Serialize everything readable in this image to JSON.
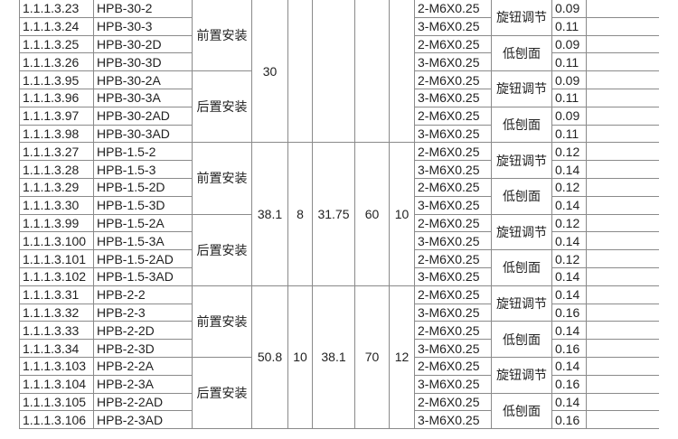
{
  "groups": [
    {
      "dims": [
        "30",
        "",
        "",
        "",
        ""
      ],
      "rows": [
        {
          "code": "1.1.1.3.23",
          "model": "HPB-30-2",
          "thread": "2-M6X0.25",
          "weight": "0.09"
        },
        {
          "code": "1.1.1.3.24",
          "model": "HPB-30-3",
          "thread": "3-M6X0.25",
          "weight": "0.11"
        },
        {
          "code": "1.1.1.3.25",
          "model": "HPB-30-2D",
          "thread": "2-M6X0.25",
          "weight": "0.09"
        },
        {
          "code": "1.1.1.3.26",
          "model": "HPB-30-3D",
          "thread": "3-M6X0.25",
          "weight": "0.11"
        },
        {
          "code": "1.1.1.3.95",
          "model": "HPB-30-2A",
          "thread": "2-M6X0.25",
          "weight": "0.09"
        },
        {
          "code": "1.1.1.3.96",
          "model": "HPB-30-3A",
          "thread": "3-M6X0.25",
          "weight": "0.11"
        },
        {
          "code": "1.1.1.3.97",
          "model": "HPB-30-2AD",
          "thread": "2-M6X0.25",
          "weight": "0.09"
        },
        {
          "code": "1.1.1.3.98",
          "model": "HPB-30-3AD",
          "thread": "3-M6X0.25",
          "weight": "0.11"
        }
      ]
    },
    {
      "dims": [
        "38.1",
        "8",
        "31.75",
        "60",
        "10"
      ],
      "rows": [
        {
          "code": "1.1.1.3.27",
          "model": "HPB-1.5-2",
          "thread": "2-M6X0.25",
          "weight": "0.12"
        },
        {
          "code": "1.1.1.3.28",
          "model": "HPB-1.5-3",
          "thread": "3-M6X0.25",
          "weight": "0.14"
        },
        {
          "code": "1.1.1.3.29",
          "model": "HPB-1.5-2D",
          "thread": "2-M6X0.25",
          "weight": "0.12"
        },
        {
          "code": "1.1.1.3.30",
          "model": "HPB-1.5-3D",
          "thread": "3-M6X0.25",
          "weight": "0.14"
        },
        {
          "code": "1.1.1.3.99",
          "model": "HPB-1.5-2A",
          "thread": "2-M6X0.25",
          "weight": "0.12"
        },
        {
          "code": "1.1.1.3.100",
          "model": "HPB-1.5-3A",
          "thread": "3-M6X0.25",
          "weight": "0.14"
        },
        {
          "code": "1.1.1.3.101",
          "model": "HPB-1.5-2AD",
          "thread": "2-M6X0.25",
          "weight": "0.12"
        },
        {
          "code": "1.1.1.3.102",
          "model": "HPB-1.5-3AD",
          "thread": "3-M6X0.25",
          "weight": "0.14"
        }
      ]
    },
    {
      "dims": [
        "50.8",
        "10",
        "38.1",
        "70",
        "12"
      ],
      "rows": [
        {
          "code": "1.1.1.3.31",
          "model": "HPB-2-2",
          "thread": "2-M6X0.25",
          "weight": "0.14"
        },
        {
          "code": "1.1.1.3.32",
          "model": "HPB-2-3",
          "thread": "3-M6X0.25",
          "weight": "0.16"
        },
        {
          "code": "1.1.1.3.33",
          "model": "HPB-2-2D",
          "thread": "2-M6X0.25",
          "weight": "0.14"
        },
        {
          "code": "1.1.1.3.34",
          "model": "HPB-2-3D",
          "thread": "3-M6X0.25",
          "weight": "0.16"
        },
        {
          "code": "1.1.1.3.103",
          "model": "HPB-2-2A",
          "thread": "2-M6X0.25",
          "weight": "0.14"
        },
        {
          "code": "1.1.1.3.104",
          "model": "HPB-2-3A",
          "thread": "3-M6X0.25",
          "weight": "0.16"
        },
        {
          "code": "1.1.1.3.105",
          "model": "HPB-2-2AD",
          "thread": "2-M6X0.25",
          "weight": "0.14"
        },
        {
          "code": "1.1.1.3.106",
          "model": "HPB-2-3AD",
          "thread": "3-M6X0.25",
          "weight": "0.16"
        }
      ]
    }
  ],
  "mounts": [
    "前置安装",
    "后置安装"
  ],
  "adjust_types": [
    "旋钮调节",
    "低刨面"
  ]
}
